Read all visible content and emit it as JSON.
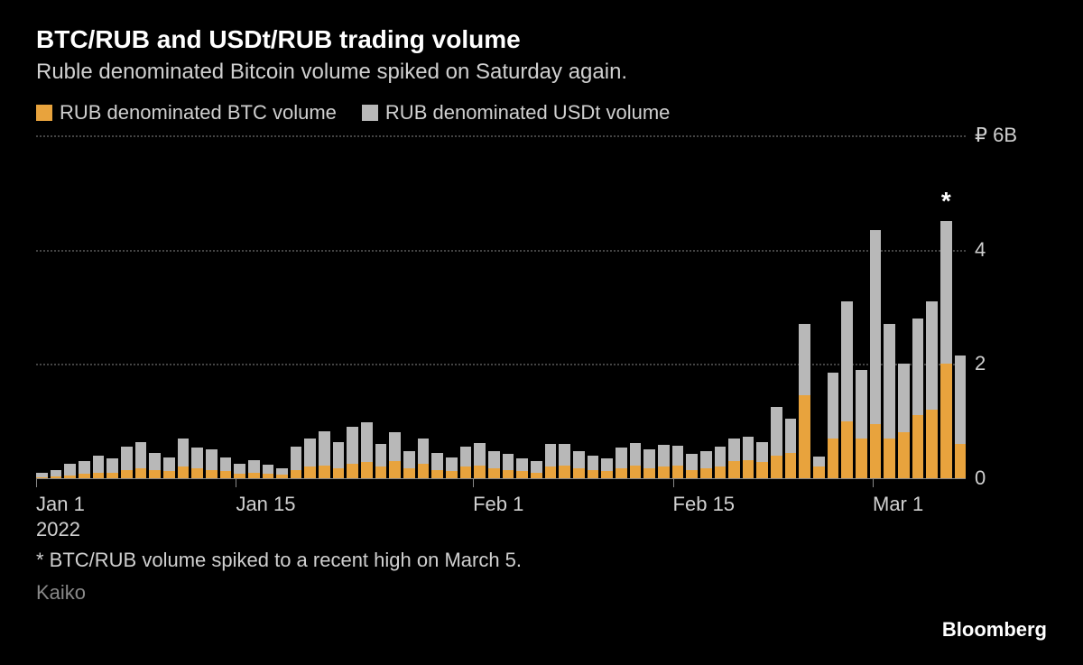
{
  "title": "BTC/RUB and USDt/RUB trading volume",
  "subtitle": "Ruble denominated Bitcoin volume spiked on Saturday again.",
  "legend": {
    "series_a": {
      "label": "RUB denominated BTC volume",
      "color": "#e8a33d"
    },
    "series_b": {
      "label": "RUB denominated USDt volume",
      "color": "#b8b8b8"
    }
  },
  "chart": {
    "type": "stacked-bar",
    "background_color": "#000000",
    "grid_color": "#444444",
    "baseline_color": "#888888",
    "y": {
      "max": 6,
      "ticks": [
        0,
        2,
        4,
        6
      ],
      "unit_label": "₽ 6B",
      "labels": [
        "0",
        "2",
        "4",
        "₽ 6B"
      ]
    },
    "x_ticks": [
      {
        "pos": 0.0,
        "label": "Jan 1",
        "year": "2022"
      },
      {
        "pos": 0.215,
        "label": "Jan 15"
      },
      {
        "pos": 0.47,
        "label": "Feb 1"
      },
      {
        "pos": 0.685,
        "label": "Feb 15"
      },
      {
        "pos": 0.9,
        "label": "Mar 1"
      }
    ],
    "bars": [
      {
        "a": 0.02,
        "b": 0.08
      },
      {
        "a": 0.03,
        "b": 0.12
      },
      {
        "a": 0.05,
        "b": 0.2
      },
      {
        "a": 0.08,
        "b": 0.22
      },
      {
        "a": 0.1,
        "b": 0.3
      },
      {
        "a": 0.1,
        "b": 0.25
      },
      {
        "a": 0.15,
        "b": 0.4
      },
      {
        "a": 0.18,
        "b": 0.45
      },
      {
        "a": 0.15,
        "b": 0.3
      },
      {
        "a": 0.12,
        "b": 0.25
      },
      {
        "a": 0.2,
        "b": 0.5
      },
      {
        "a": 0.18,
        "b": 0.35
      },
      {
        "a": 0.15,
        "b": 0.35
      },
      {
        "a": 0.12,
        "b": 0.25
      },
      {
        "a": 0.08,
        "b": 0.18
      },
      {
        "a": 0.1,
        "b": 0.22
      },
      {
        "a": 0.08,
        "b": 0.15
      },
      {
        "a": 0.06,
        "b": 0.12
      },
      {
        "a": 0.15,
        "b": 0.4
      },
      {
        "a": 0.2,
        "b": 0.5
      },
      {
        "a": 0.22,
        "b": 0.6
      },
      {
        "a": 0.18,
        "b": 0.45
      },
      {
        "a": 0.25,
        "b": 0.65
      },
      {
        "a": 0.28,
        "b": 0.7
      },
      {
        "a": 0.2,
        "b": 0.4
      },
      {
        "a": 0.3,
        "b": 0.5
      },
      {
        "a": 0.18,
        "b": 0.3
      },
      {
        "a": 0.25,
        "b": 0.45
      },
      {
        "a": 0.15,
        "b": 0.3
      },
      {
        "a": 0.12,
        "b": 0.25
      },
      {
        "a": 0.2,
        "b": 0.35
      },
      {
        "a": 0.22,
        "b": 0.4
      },
      {
        "a": 0.18,
        "b": 0.3
      },
      {
        "a": 0.15,
        "b": 0.28
      },
      {
        "a": 0.12,
        "b": 0.22
      },
      {
        "a": 0.1,
        "b": 0.2
      },
      {
        "a": 0.2,
        "b": 0.4
      },
      {
        "a": 0.22,
        "b": 0.38
      },
      {
        "a": 0.18,
        "b": 0.3
      },
      {
        "a": 0.15,
        "b": 0.25
      },
      {
        "a": 0.12,
        "b": 0.22
      },
      {
        "a": 0.18,
        "b": 0.35
      },
      {
        "a": 0.22,
        "b": 0.4
      },
      {
        "a": 0.18,
        "b": 0.32
      },
      {
        "a": 0.2,
        "b": 0.38
      },
      {
        "a": 0.22,
        "b": 0.35
      },
      {
        "a": 0.15,
        "b": 0.28
      },
      {
        "a": 0.18,
        "b": 0.3
      },
      {
        "a": 0.2,
        "b": 0.35
      },
      {
        "a": 0.3,
        "b": 0.4
      },
      {
        "a": 0.32,
        "b": 0.4
      },
      {
        "a": 0.28,
        "b": 0.35
      },
      {
        "a": 0.4,
        "b": 0.85
      },
      {
        "a": 0.45,
        "b": 0.6
      },
      {
        "a": 1.45,
        "b": 1.25
      },
      {
        "a": 0.2,
        "b": 0.18
      },
      {
        "a": 0.7,
        "b": 1.15
      },
      {
        "a": 1.0,
        "b": 2.1
      },
      {
        "a": 0.7,
        "b": 1.2
      },
      {
        "a": 0.95,
        "b": 3.4
      },
      {
        "a": 0.7,
        "b": 2.0
      },
      {
        "a": 0.8,
        "b": 1.2
      },
      {
        "a": 1.1,
        "b": 1.7
      },
      {
        "a": 1.2,
        "b": 1.9
      },
      {
        "a": 2.0,
        "b": 2.5,
        "star": true
      },
      {
        "a": 0.6,
        "b": 1.55
      }
    ]
  },
  "footnote": "* BTC/RUB volume spiked to a recent high on March 5.",
  "source": "Kaiko",
  "brand": "Bloomberg"
}
